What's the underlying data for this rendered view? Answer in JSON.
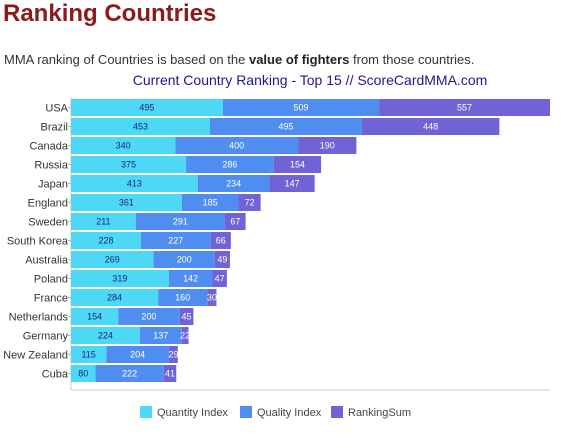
{
  "page": {
    "title": "Ranking Countries",
    "intro_before": "MMA ranking of Countries is based on the ",
    "intro_bold": "value of fighters",
    "intro_after": " from those countries."
  },
  "chart_data": {
    "type": "bar",
    "orientation": "horizontal",
    "stacked": true,
    "title": "Current Country Ranking - Top 15    // ScoreCardMMA.com",
    "categories": [
      "USA",
      "Brazil",
      "Canada",
      "Russia",
      "Japan",
      "England",
      "Sweden",
      "South Korea",
      "Australia",
      "Poland",
      "France",
      "Netherlands",
      "Germany",
      "New Zealand",
      "Cuba"
    ],
    "series": [
      {
        "name": "Quantity Index",
        "color": "#4dd9f5",
        "values": [
          495,
          453,
          340,
          375,
          413,
          361,
          211,
          228,
          269,
          319,
          284,
          154,
          224,
          115,
          80
        ]
      },
      {
        "name": "Quality Index",
        "color": "#4f8ef0",
        "values": [
          509,
          495,
          400,
          286,
          234,
          185,
          291,
          227,
          200,
          142,
          160,
          200,
          137,
          204,
          222
        ]
      },
      {
        "name": "RankingSum",
        "color": "#6f63d6",
        "values": [
          557,
          448,
          190,
          154,
          147,
          72,
          67,
          66,
          49,
          47,
          30,
          45,
          22,
          29,
          41
        ]
      }
    ],
    "xlim": [
      0,
      1561
    ],
    "legend_position": "bottom",
    "grid": false
  }
}
